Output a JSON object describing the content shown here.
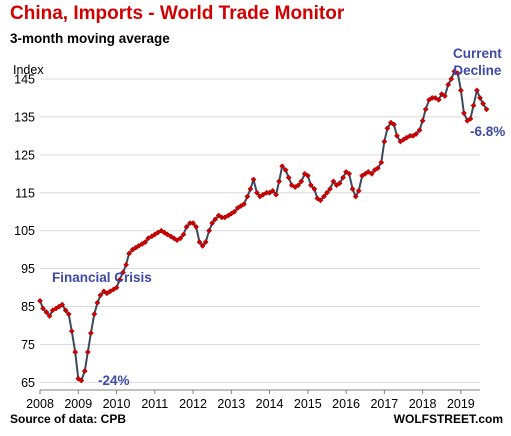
{
  "chart_data": {
    "type": "line",
    "title": "China, Imports - World Trade Monitor",
    "subtitle": "3-month moving average",
    "ylabel": "Index",
    "ylim": [
      63,
      150
    ],
    "xlim": [
      2008.0,
      2019.5
    ],
    "y_ticks": [
      "65",
      "75",
      "85",
      "95",
      "105",
      "115",
      "125",
      "135",
      "145"
    ],
    "x_ticks": [
      "2008",
      "2009",
      "2010",
      "2011",
      "2012",
      "2013",
      "2014",
      "2015",
      "2016",
      "2017",
      "2018",
      "2019"
    ],
    "grid": "horizontal",
    "line_color": "#3a4a60",
    "marker_color": "#d40000",
    "annotations": {
      "financial_crisis": "Financial Crisis",
      "drop_2009": "-24%",
      "current_decline_1": "Current",
      "current_decline_2": "Decline",
      "drop_2019": "-6.8%"
    },
    "series": [
      {
        "values": [
          [
            2008.0,
            86.5
          ],
          [
            2008.08,
            84.5
          ],
          [
            2008.17,
            83.5
          ],
          [
            2008.25,
            82.5
          ],
          [
            2008.33,
            84.0
          ],
          [
            2008.42,
            84.5
          ],
          [
            2008.5,
            85.0
          ],
          [
            2008.58,
            85.5
          ],
          [
            2008.67,
            84.0
          ],
          [
            2008.75,
            83.0
          ],
          [
            2008.83,
            78.5
          ],
          [
            2008.92,
            73.0
          ],
          [
            2009.0,
            66.0
          ],
          [
            2009.08,
            65.5
          ],
          [
            2009.17,
            68.0
          ],
          [
            2009.25,
            73.0
          ],
          [
            2009.33,
            78.0
          ],
          [
            2009.42,
            83.0
          ],
          [
            2009.5,
            86.0
          ],
          [
            2009.58,
            88.0
          ],
          [
            2009.67,
            89.0
          ],
          [
            2009.75,
            88.5
          ],
          [
            2009.83,
            89.0
          ],
          [
            2009.92,
            89.5
          ],
          [
            2010.0,
            90.0
          ],
          [
            2010.08,
            92.0
          ],
          [
            2010.17,
            94.0
          ],
          [
            2010.25,
            96.0
          ],
          [
            2010.33,
            99.0
          ],
          [
            2010.42,
            100.0
          ],
          [
            2010.5,
            100.5
          ],
          [
            2010.58,
            101.0
          ],
          [
            2010.67,
            101.5
          ],
          [
            2010.75,
            102.0
          ],
          [
            2010.83,
            103.0
          ],
          [
            2010.92,
            103.5
          ],
          [
            2011.0,
            104.0
          ],
          [
            2011.08,
            104.5
          ],
          [
            2011.17,
            105.0
          ],
          [
            2011.25,
            104.5
          ],
          [
            2011.33,
            104.0
          ],
          [
            2011.42,
            103.5
          ],
          [
            2011.5,
            103.0
          ],
          [
            2011.58,
            102.5
          ],
          [
            2011.67,
            103.0
          ],
          [
            2011.75,
            104.0
          ],
          [
            2011.83,
            106.0
          ],
          [
            2011.92,
            107.0
          ],
          [
            2012.0,
            107.0
          ],
          [
            2012.08,
            106.0
          ],
          [
            2012.17,
            102.0
          ],
          [
            2012.25,
            101.0
          ],
          [
            2012.33,
            102.0
          ],
          [
            2012.42,
            105.0
          ],
          [
            2012.5,
            107.0
          ],
          [
            2012.58,
            108.0
          ],
          [
            2012.67,
            109.0
          ],
          [
            2012.75,
            108.5
          ],
          [
            2012.83,
            108.5
          ],
          [
            2012.92,
            109.0
          ],
          [
            2013.0,
            109.5
          ],
          [
            2013.08,
            110.0
          ],
          [
            2013.17,
            111.0
          ],
          [
            2013.25,
            111.5
          ],
          [
            2013.33,
            112.0
          ],
          [
            2013.42,
            114.0
          ],
          [
            2013.5,
            116.0
          ],
          [
            2013.58,
            118.5
          ],
          [
            2013.67,
            115.0
          ],
          [
            2013.75,
            114.0
          ],
          [
            2013.83,
            114.5
          ],
          [
            2013.92,
            115.0
          ],
          [
            2014.0,
            115.0
          ],
          [
            2014.08,
            115.5
          ],
          [
            2014.17,
            114.5
          ],
          [
            2014.25,
            118.0
          ],
          [
            2014.33,
            122.0
          ],
          [
            2014.42,
            121.0
          ],
          [
            2014.5,
            119.0
          ],
          [
            2014.58,
            117.0
          ],
          [
            2014.67,
            116.5
          ],
          [
            2014.75,
            117.0
          ],
          [
            2014.83,
            118.0
          ],
          [
            2014.92,
            120.0
          ],
          [
            2015.0,
            119.5
          ],
          [
            2015.08,
            117.0
          ],
          [
            2015.17,
            116.0
          ],
          [
            2015.25,
            113.5
          ],
          [
            2015.33,
            113.0
          ],
          [
            2015.42,
            114.0
          ],
          [
            2015.5,
            115.0
          ],
          [
            2015.58,
            116.0
          ],
          [
            2015.67,
            118.0
          ],
          [
            2015.75,
            117.0
          ],
          [
            2015.83,
            117.5
          ],
          [
            2015.92,
            119.0
          ],
          [
            2016.0,
            120.5
          ],
          [
            2016.08,
            120.0
          ],
          [
            2016.17,
            116.0
          ],
          [
            2016.25,
            114.0
          ],
          [
            2016.33,
            115.5
          ],
          [
            2016.42,
            119.5
          ],
          [
            2016.5,
            120.0
          ],
          [
            2016.58,
            120.5
          ],
          [
            2016.67,
            120.0
          ],
          [
            2016.75,
            121.0
          ],
          [
            2016.83,
            121.5
          ],
          [
            2016.92,
            123.0
          ],
          [
            2017.0,
            128.5
          ],
          [
            2017.08,
            132.0
          ],
          [
            2017.17,
            133.5
          ],
          [
            2017.25,
            133.0
          ],
          [
            2017.33,
            130.0
          ],
          [
            2017.42,
            128.5
          ],
          [
            2017.5,
            129.0
          ],
          [
            2017.58,
            129.5
          ],
          [
            2017.67,
            130.0
          ],
          [
            2017.75,
            130.0
          ],
          [
            2017.83,
            130.5
          ],
          [
            2017.92,
            131.5
          ],
          [
            2018.0,
            134.0
          ],
          [
            2018.08,
            137.0
          ],
          [
            2018.17,
            139.5
          ],
          [
            2018.25,
            140.0
          ],
          [
            2018.33,
            140.0
          ],
          [
            2018.42,
            139.5
          ],
          [
            2018.5,
            141.0
          ],
          [
            2018.58,
            140.5
          ],
          [
            2018.67,
            143.5
          ],
          [
            2018.75,
            145.0
          ],
          [
            2018.83,
            147.0
          ],
          [
            2018.92,
            146.5
          ],
          [
            2019.0,
            142.0
          ],
          [
            2019.08,
            136.0
          ],
          [
            2019.17,
            134.0
          ],
          [
            2019.25,
            134.5
          ],
          [
            2019.33,
            138.0
          ],
          [
            2019.42,
            142.0
          ],
          [
            2019.5,
            140.0
          ],
          [
            2019.58,
            138.5
          ],
          [
            2019.67,
            137.0
          ]
        ]
      }
    ]
  },
  "footer": {
    "source": "Source of data: CPB",
    "brand": "WOLFSTREET.com"
  }
}
